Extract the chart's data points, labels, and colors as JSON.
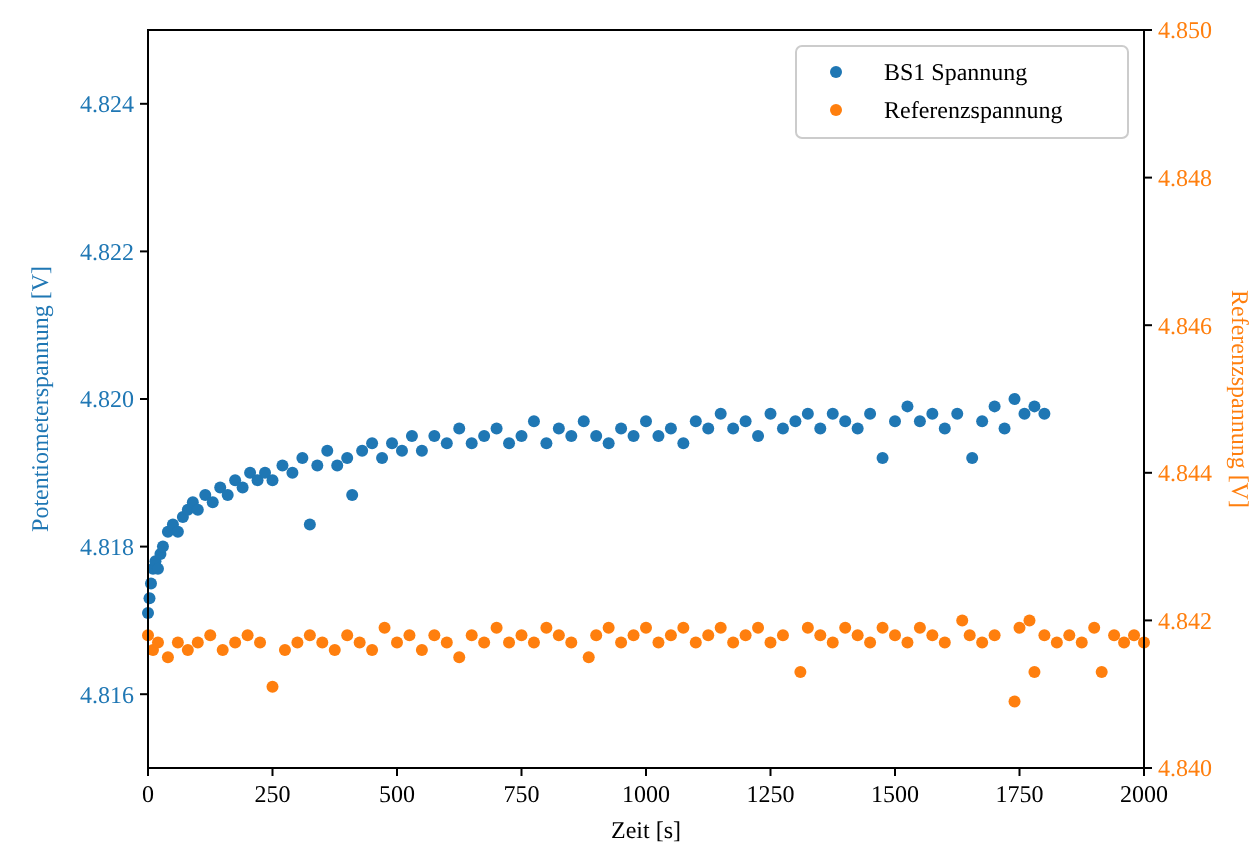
{
  "chart_data": {
    "type": "scatter",
    "xlabel": "Zeit [s]",
    "ylabel": "Potentiometerspannung [V]",
    "y2label": "Referenzspannung [V]",
    "xlim": [
      0,
      2000
    ],
    "xticks": [
      0,
      250,
      500,
      750,
      1000,
      1250,
      1500,
      1750,
      2000
    ],
    "ylim": [
      4.815,
      4.825
    ],
    "yticks": [
      4.816,
      4.818,
      {
        "value": 4.82,
        "label": "4.820"
      },
      4.822,
      4.824
    ],
    "y2lim": [
      4.84,
      4.85
    ],
    "y2ticks": [
      {
        "value": 4.84,
        "label": "4.840"
      },
      4.842,
      4.844,
      4.846,
      4.848,
      {
        "value": 4.85,
        "label": "4.850"
      }
    ],
    "legend": "top right",
    "marker": "circle",
    "series": [
      {
        "name": "BS1 Spannung",
        "color": "#1f77b4",
        "x": [
          0,
          3,
          6,
          10,
          15,
          20,
          25,
          30,
          40,
          50,
          60,
          70,
          80,
          90,
          100,
          115,
          130,
          145,
          160,
          175,
          190,
          205,
          220,
          235,
          250,
          270,
          290,
          310,
          325,
          340,
          360,
          380,
          400,
          410,
          430,
          450,
          470,
          490,
          510,
          530,
          550,
          575,
          600,
          625,
          650,
          675,
          700,
          725,
          750,
          775,
          800,
          825,
          850,
          875,
          900,
          925,
          950,
          975,
          1000,
          1025,
          1050,
          1075,
          1100,
          1125,
          1150,
          1175,
          1200,
          1225,
          1250,
          1275,
          1300,
          1325,
          1350,
          1375,
          1400,
          1425,
          1450,
          1475,
          1500,
          1525,
          1550,
          1575,
          1600,
          1625,
          1655,
          1675,
          1700,
          1720,
          1740,
          1760,
          1780,
          1800
        ],
        "values": [
          4.8171,
          4.8173,
          4.8175,
          4.8177,
          4.8178,
          4.8177,
          4.8179,
          4.818,
          4.8182,
          4.8183,
          4.8182,
          4.8184,
          4.8185,
          4.8186,
          4.8185,
          4.8187,
          4.8186,
          4.8188,
          4.8187,
          4.8189,
          4.8188,
          4.819,
          4.8189,
          4.819,
          4.8189,
          4.8191,
          4.819,
          4.8192,
          4.8183,
          4.8191,
          4.8193,
          4.8191,
          4.8192,
          4.8187,
          4.8193,
          4.8194,
          4.8192,
          4.8194,
          4.8193,
          4.8195,
          4.8193,
          4.8195,
          4.8194,
          4.8196,
          4.8194,
          4.8195,
          4.8196,
          4.8194,
          4.8195,
          4.8197,
          4.8194,
          4.8196,
          4.8195,
          4.8197,
          4.8195,
          4.8194,
          4.8196,
          4.8195,
          4.8197,
          4.8195,
          4.8196,
          4.8194,
          4.8197,
          4.8196,
          4.8198,
          4.8196,
          4.8197,
          4.8195,
          4.8198,
          4.8196,
          4.8197,
          4.8198,
          4.8196,
          4.8198,
          4.8197,
          4.8196,
          4.8198,
          4.8192,
          4.8197,
          4.8199,
          4.8197,
          4.8198,
          4.8196,
          4.8198,
          4.8192,
          4.8197,
          4.8199,
          4.8196,
          4.82,
          4.8198,
          4.8199,
          4.8198
        ]
      },
      {
        "name": "Referenzspannung",
        "color": "#ff7f0e",
        "axis": "y2",
        "x": [
          0,
          10,
          20,
          40,
          60,
          80,
          100,
          125,
          150,
          175,
          200,
          225,
          250,
          275,
          300,
          325,
          350,
          375,
          400,
          425,
          450,
          475,
          500,
          525,
          550,
          575,
          600,
          625,
          650,
          675,
          700,
          725,
          750,
          775,
          800,
          825,
          850,
          885,
          900,
          925,
          950,
          975,
          1000,
          1025,
          1050,
          1075,
          1100,
          1125,
          1150,
          1175,
          1200,
          1225,
          1250,
          1275,
          1310,
          1325,
          1350,
          1375,
          1400,
          1425,
          1450,
          1475,
          1500,
          1525,
          1550,
          1575,
          1600,
          1635,
          1650,
          1675,
          1700,
          1740,
          1750,
          1770,
          1780,
          1800,
          1825,
          1850,
          1875,
          1900,
          1915,
          1940,
          1960,
          1980,
          2000
        ],
        "values": [
          4.8418,
          4.8416,
          4.8417,
          4.8415,
          4.8417,
          4.8416,
          4.8417,
          4.8418,
          4.8416,
          4.8417,
          4.8418,
          4.8417,
          4.8411,
          4.8416,
          4.8417,
          4.8418,
          4.8417,
          4.8416,
          4.8418,
          4.8417,
          4.8416,
          4.8419,
          4.8417,
          4.8418,
          4.8416,
          4.8418,
          4.8417,
          4.8415,
          4.8418,
          4.8417,
          4.8419,
          4.8417,
          4.8418,
          4.8417,
          4.8419,
          4.8418,
          4.8417,
          4.8415,
          4.8418,
          4.8419,
          4.8417,
          4.8418,
          4.8419,
          4.8417,
          4.8418,
          4.8419,
          4.8417,
          4.8418,
          4.8419,
          4.8417,
          4.8418,
          4.8419,
          4.8417,
          4.8418,
          4.8413,
          4.8419,
          4.8418,
          4.8417,
          4.8419,
          4.8418,
          4.8417,
          4.8419,
          4.8418,
          4.8417,
          4.8419,
          4.8418,
          4.8417,
          4.842,
          4.8418,
          4.8417,
          4.8418,
          4.8409,
          4.8419,
          4.842,
          4.8413,
          4.8418,
          4.8417,
          4.8418,
          4.8417,
          4.8419,
          4.8413,
          4.8418,
          4.8417,
          4.8418,
          4.8417
        ]
      }
    ]
  }
}
